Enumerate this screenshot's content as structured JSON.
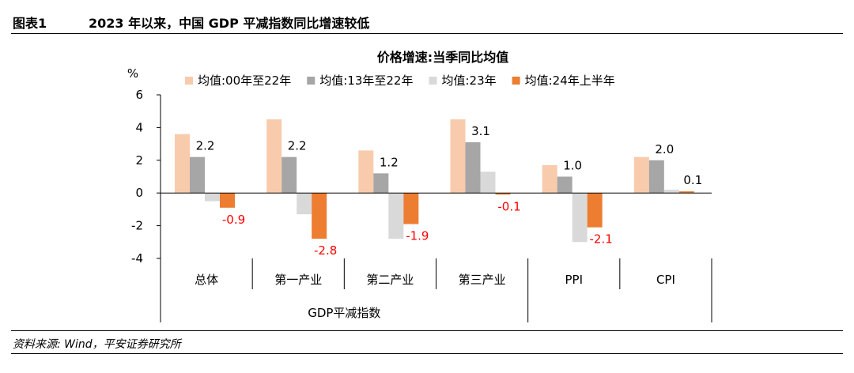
{
  "header": {
    "figure_label": "图表1",
    "figure_title": "2023 年以来，中国 GDP 平减指数同比增速较低"
  },
  "footer": {
    "source": "资料来源: Wind，平安证券研究所"
  },
  "chart_data": {
    "type": "bar",
    "title": "价格增速:当季同比均值",
    "ylabel": "%",
    "ylim": [
      -4,
      6
    ],
    "yticks": [
      "6",
      "4",
      "2",
      "0",
      "-2",
      "-4"
    ],
    "categories": [
      "总体",
      "第一产业",
      "第二产业",
      "第三产业",
      "PPI",
      "CPI"
    ],
    "group_label": "GDP平减指数",
    "legend_position": "top",
    "grid": false,
    "series": [
      {
        "name": "均值:00年至22年",
        "color": "#F8CBAD",
        "values": [
          3.6,
          4.5,
          2.6,
          4.5,
          1.7,
          2.2
        ]
      },
      {
        "name": "均值:13年至22年",
        "color": "#A6A6A6",
        "values": [
          2.2,
          2.2,
          1.2,
          3.1,
          1.0,
          2.0
        ]
      },
      {
        "name": "均值:23年",
        "color": "#D9D9D9",
        "values": [
          -0.5,
          -1.3,
          -2.8,
          1.3,
          -3.0,
          0.2
        ]
      },
      {
        "name": "均值:24年上半年",
        "color": "#ED7D31",
        "values": [
          -0.9,
          -2.8,
          -1.9,
          -0.1,
          -2.1,
          0.1
        ]
      }
    ],
    "data_labels": {
      "gray": [
        "2.2",
        "2.2",
        "1.2",
        "3.1",
        "1.0",
        "2.0"
      ],
      "orange": [
        "-0.9",
        "-2.8",
        "-1.9",
        "-0.1",
        "-2.1",
        "0.1"
      ],
      "orange_label_color": "#FF0000"
    }
  }
}
